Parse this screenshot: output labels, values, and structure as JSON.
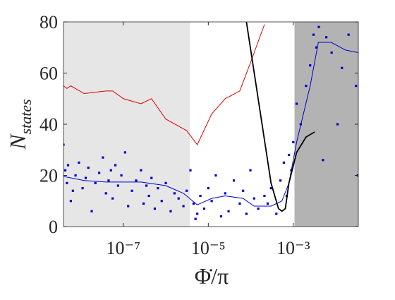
{
  "chart_data": {
    "type": "line",
    "xlabel": "Φ̇/π",
    "ylabel_main": "N",
    "ylabel_sub": "states",
    "xscale": "log",
    "xlim": [
      3.9e-09,
      0.034
    ],
    "ylim": [
      0,
      80
    ],
    "yticks": [
      0,
      20,
      40,
      60,
      80
    ],
    "xticks": [
      {
        "value": 1e-07,
        "label": "10⁻⁷"
      },
      {
        "value": 1e-05,
        "label": "10⁻⁵"
      },
      {
        "value": 0.001,
        "label": "10⁻³"
      }
    ],
    "regions": [
      {
        "xlim": [
          3.9e-09,
          3.7e-06
        ],
        "color": "#e6e6e6"
      },
      {
        "xlim": [
          0.00107,
          0.034
        ],
        "color": "#b3b3b3"
      }
    ],
    "series": [
      {
        "kind": "scatter",
        "color": "#0000cc",
        "x": [
          3.9e-09,
          4.3e-09,
          4.7e-09,
          5e-09,
          5.8e-09,
          6.5e-09,
          7.5e-09,
          9e-09,
          1.1e-08,
          1.3e-08,
          1.5e-08,
          1.8e-08,
          2.2e-08,
          2.7e-08,
          3.3e-08,
          3.9e-08,
          4.5e-08,
          5.1e-08,
          5.6e-08,
          6.5e-08,
          7.5e-08,
          9e-08,
          1.1e-07,
          1.3e-07,
          1.6e-07,
          2e-07,
          2.6e-07,
          3e-07,
          3.5e-07,
          4e-07,
          4.6e-07,
          5.5e-07,
          6.5e-07,
          8e-07,
          1e-06,
          1.3e-06,
          1.6e-06,
          2e-06,
          2.6e-06,
          3.1e-06,
          3.8e-06,
          4.5e-06,
          5e-06,
          5.5e-06,
          6.5e-06,
          8e-06,
          1e-05,
          1.2e-05,
          1.5e-05,
          2e-05,
          2.5e-05,
          3e-05,
          4e-05,
          5.5e-05,
          6.6e-05,
          7.9e-05,
          9.8e-05,
          0.00012,
          0.00015,
          0.00021,
          0.00025,
          0.0003,
          0.0004,
          0.0005,
          0.0006,
          0.0007,
          0.00079,
          0.0009,
          0.001,
          0.0012,
          0.0015,
          0.002,
          0.0025,
          0.003,
          0.0035,
          0.004,
          0.005,
          0.006,
          0.008,
          0.011,
          0.014,
          0.02,
          0.03,
          0.033
        ],
        "values": [
          32,
          22,
          17,
          24,
          10,
          14,
          20,
          25,
          15,
          19,
          23,
          6,
          17,
          21,
          27,
          13,
          18,
          22,
          11,
          24,
          16,
          20,
          29,
          8,
          14,
          18,
          22,
          9,
          16,
          12,
          19,
          7,
          15,
          10,
          17,
          6,
          13,
          11,
          8,
          14,
          22,
          9,
          3,
          5,
          12,
          7,
          15,
          10,
          20,
          4,
          13,
          6,
          18,
          9,
          14,
          5,
          22,
          11,
          7,
          12,
          9,
          15,
          5,
          18,
          25,
          12,
          28,
          22,
          33,
          48,
          40,
          55,
          63,
          75,
          70,
          78,
          26,
          74,
          68,
          40,
          62,
          75,
          55,
          20
        ]
      },
      {
        "kind": "line",
        "color": "#0000cc",
        "x": [
          3.9e-09,
          1.2e-08,
          3.9e-08,
          2.6e-07,
          1e-06,
          2.6e-06,
          5.5e-06,
          1.2e-05,
          2.5e-05,
          6.6e-05,
          0.00012,
          0.0003,
          0.00054,
          0.00079,
          0.0012,
          0.0025,
          0.0039,
          0.0078,
          0.017,
          0.033
        ],
        "values": [
          19.6,
          18,
          17.4,
          17.4,
          16,
          13,
          8.5,
          11,
          12,
          11,
          8,
          8,
          10,
          17,
          33,
          55,
          72,
          72,
          69,
          68
        ]
      },
      {
        "kind": "line",
        "color": "#dd0000",
        "x": [
          3.9e-09,
          4.7e-09,
          5.8e-09,
          1.2e-08,
          3.9e-08,
          5.6e-08,
          1e-07,
          2.6e-07,
          4.6e-07,
          1e-06,
          3.1e-06,
          5.5e-06,
          1.2e-05,
          2.5e-05,
          5.5e-05,
          9.8e-05,
          0.00021
        ],
        "values": [
          55,
          54,
          55,
          52,
          53,
          53,
          50,
          48,
          50,
          42,
          37.5,
          32,
          44,
          50,
          53,
          64,
          79
        ]
      },
      {
        "kind": "line",
        "color": "#000000",
        "x": [
          7.9e-05,
          0.0003,
          0.00045,
          0.00054,
          0.00065,
          0.00079,
          0.0012,
          0.002,
          0.0032
        ],
        "values": [
          80,
          17,
          7,
          6,
          7,
          17,
          29,
          35,
          37
        ]
      }
    ]
  }
}
